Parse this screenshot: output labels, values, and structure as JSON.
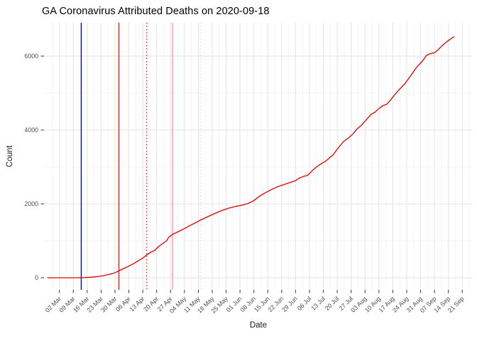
{
  "chart_data": {
    "type": "line",
    "title": "GA Coronavirus Attributed Deaths on 2020-09-18",
    "xlabel": "Date",
    "ylabel": "Count",
    "x_tick_labels": [
      "02 Mar",
      "09 Mar",
      "16 Mar",
      "23 Mar",
      "30 Mar",
      "06 Apr",
      "13 Apr",
      "20 Apr",
      "27 Apr",
      "04 May",
      "11 May",
      "18 May",
      "25 May",
      "01 Jun",
      "08 Jun",
      "15 Jun",
      "22 Jun",
      "29 Jun",
      "06 Jul",
      "13 Jul",
      "20 Jul",
      "27 Jul",
      "03 Aug",
      "10 Aug",
      "17 Aug",
      "24 Aug",
      "31 Aug",
      "07 Sep",
      "14 Sep",
      "21 Sep"
    ],
    "x_tick_start_date": "2020-03-02",
    "x_tick_interval_days": 7,
    "y_ticks": [
      0,
      2000,
      4000,
      6000
    ],
    "y_minor_ticks": [
      1000,
      3000,
      5000
    ],
    "ylim": [
      -330,
      6890
    ],
    "grid": "major+minor",
    "legend": "none",
    "colors": {
      "line": "#e00000",
      "vline_blue": "#0000cd",
      "vline_red": "#ff0000",
      "vline_pink": "#ffb6c1",
      "grid_major": "#e3e3e3",
      "grid_minor": "#f1f1f1",
      "tick": "#333333",
      "tick_label": "#4d4d4d"
    },
    "vlines": [
      {
        "date": "2020-03-13",
        "color": "#0000cd",
        "style": "solid",
        "width": 1.3
      },
      {
        "date": "2020-04-01",
        "color": "#ff0000",
        "style": "solid",
        "width": 1.2
      },
      {
        "date": "2020-04-15",
        "color": "#ff0000",
        "style": "dotted",
        "width": 1.2
      },
      {
        "date": "2020-04-28",
        "color": "#ffb6c1",
        "style": "solid",
        "width": 2.0
      },
      {
        "date": "2020-05-12",
        "color": "#ffc0cb",
        "style": "dotted",
        "width": 1.2
      }
    ],
    "series": [
      {
        "name": "cumulative-deaths",
        "color": "#e00000",
        "points": [
          [
            "2020-02-25",
            0
          ],
          [
            "2020-03-05",
            0
          ],
          [
            "2020-03-10",
            0
          ],
          [
            "2020-03-12",
            2
          ],
          [
            "2020-03-15",
            5
          ],
          [
            "2020-03-18",
            16
          ],
          [
            "2020-03-21",
            30
          ],
          [
            "2020-03-24",
            55
          ],
          [
            "2020-03-27",
            90
          ],
          [
            "2020-03-29",
            120
          ],
          [
            "2020-03-31",
            160
          ],
          [
            "2020-04-01",
            190
          ],
          [
            "2020-04-03",
            240
          ],
          [
            "2020-04-05",
            290
          ],
          [
            "2020-04-07",
            345
          ],
          [
            "2020-04-09",
            400
          ],
          [
            "2020-04-11",
            470
          ],
          [
            "2020-04-13",
            530
          ],
          [
            "2020-04-15",
            617
          ],
          [
            "2020-04-17",
            690
          ],
          [
            "2020-04-19",
            740
          ],
          [
            "2020-04-21",
            846
          ],
          [
            "2020-04-23",
            925
          ],
          [
            "2020-04-25",
            1000
          ],
          [
            "2020-04-26",
            1090
          ],
          [
            "2020-04-28",
            1175
          ],
          [
            "2020-05-01",
            1250
          ],
          [
            "2020-05-04",
            1330
          ],
          [
            "2020-05-07",
            1420
          ],
          [
            "2020-05-10",
            1500
          ],
          [
            "2020-05-12",
            1560
          ],
          [
            "2020-05-15",
            1635
          ],
          [
            "2020-05-18",
            1710
          ],
          [
            "2020-05-21",
            1780
          ],
          [
            "2020-05-24",
            1845
          ],
          [
            "2020-05-27",
            1895
          ],
          [
            "2020-05-30",
            1935
          ],
          [
            "2020-06-02",
            1965
          ],
          [
            "2020-06-05",
            2010
          ],
          [
            "2020-06-08",
            2090
          ],
          [
            "2020-06-11",
            2215
          ],
          [
            "2020-06-14",
            2310
          ],
          [
            "2020-06-17",
            2390
          ],
          [
            "2020-06-20",
            2465
          ],
          [
            "2020-06-23",
            2520
          ],
          [
            "2020-06-26",
            2575
          ],
          [
            "2020-06-29",
            2630
          ],
          [
            "2020-07-01",
            2700
          ],
          [
            "2020-07-03",
            2745
          ],
          [
            "2020-07-05",
            2770
          ],
          [
            "2020-07-08",
            2930
          ],
          [
            "2020-07-10",
            3020
          ],
          [
            "2020-07-12",
            3090
          ],
          [
            "2020-07-14",
            3150
          ],
          [
            "2020-07-16",
            3240
          ],
          [
            "2020-07-18",
            3330
          ],
          [
            "2020-07-20",
            3480
          ],
          [
            "2020-07-23",
            3680
          ],
          [
            "2020-07-26",
            3800
          ],
          [
            "2020-07-28",
            3900
          ],
          [
            "2020-07-30",
            4030
          ],
          [
            "2020-08-01",
            4120
          ],
          [
            "2020-08-04",
            4300
          ],
          [
            "2020-08-06",
            4420
          ],
          [
            "2020-08-08",
            4480
          ],
          [
            "2020-08-10",
            4580
          ],
          [
            "2020-08-12",
            4660
          ],
          [
            "2020-08-14",
            4700
          ],
          [
            "2020-08-16",
            4820
          ],
          [
            "2020-08-18",
            4960
          ],
          [
            "2020-08-20",
            5080
          ],
          [
            "2020-08-23",
            5250
          ],
          [
            "2020-08-26",
            5470
          ],
          [
            "2020-08-29",
            5700
          ],
          [
            "2020-09-01",
            5870
          ],
          [
            "2020-09-03",
            6020
          ],
          [
            "2020-09-05",
            6070
          ],
          [
            "2020-09-07",
            6090
          ],
          [
            "2020-09-09",
            6180
          ],
          [
            "2020-09-11",
            6290
          ],
          [
            "2020-09-13",
            6380
          ],
          [
            "2020-09-15",
            6460
          ],
          [
            "2020-09-17",
            6530
          ]
        ]
      }
    ]
  }
}
